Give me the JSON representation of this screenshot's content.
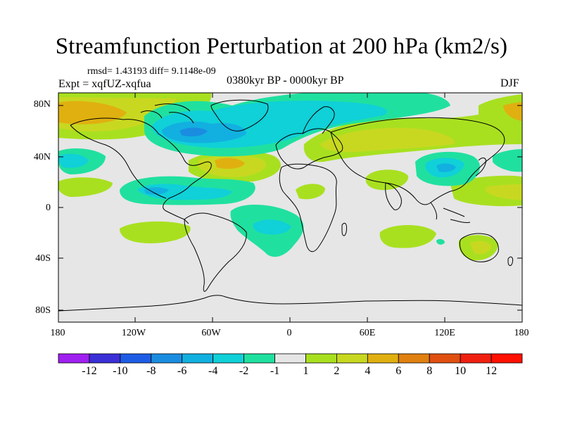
{
  "title": "Streamfunction Perturbation at 200 hPa (km2/s)",
  "stats": "rmsd= 1.43193 diff= 9.1148e-09",
  "experiment": "Expt = xqfUZ-xqfua",
  "period": "0380kyr BP - 0000kyr BP",
  "season": "DJF",
  "latitude_labels": [
    "80N",
    "40N",
    "0",
    "40S",
    "80S"
  ],
  "longitude_labels": [
    "180",
    "120W",
    "60W",
    "0",
    "60E",
    "120E",
    "180"
  ],
  "colorbar": {
    "labels": [
      "-12",
      "-10",
      "-8",
      "-6",
      "-4",
      "-2",
      "-1",
      "1",
      "2",
      "4",
      "6",
      "8",
      "10",
      "12"
    ],
    "colors": [
      "#a020f0",
      "#3b2fd6",
      "#1f5ce6",
      "#1a8de0",
      "#12b0e0",
      "#10d0d8",
      "#20e0a0",
      "#e6e6e6",
      "#a8e020",
      "#c8d820",
      "#e0b010",
      "#e08010",
      "#e05010",
      "#f02010",
      "#ff1000"
    ]
  },
  "icons": {
    "map": "world-map-coastlines"
  }
}
